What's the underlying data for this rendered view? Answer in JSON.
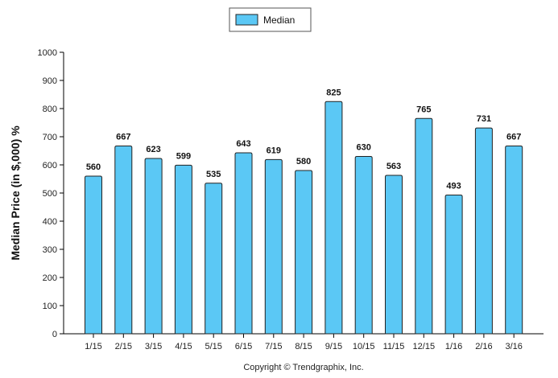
{
  "chart_data": {
    "type": "bar",
    "categories": [
      "1/15",
      "2/15",
      "3/15",
      "4/15",
      "5/15",
      "6/15",
      "7/15",
      "8/15",
      "9/15",
      "10/15",
      "11/15",
      "12/15",
      "1/16",
      "2/16",
      "3/16"
    ],
    "series": [
      {
        "name": "Median",
        "values": [
          560,
          667,
          623,
          599,
          535,
          643,
          619,
          580,
          825,
          630,
          563,
          765,
          493,
          731,
          667
        ]
      }
    ],
    "ylabel": "Median Price (in $,000) %",
    "xlabel": "",
    "ylim": [
      0,
      1000
    ],
    "yticks": [
      0,
      100,
      200,
      300,
      400,
      500,
      600,
      700,
      800,
      900,
      1000
    ],
    "legend": "top-center",
    "grid": false,
    "footer": "Copyright © Trendgraphix, Inc.",
    "colors": {
      "bar_fill": "#5bc8f5",
      "bar_stroke": "#222222"
    }
  }
}
